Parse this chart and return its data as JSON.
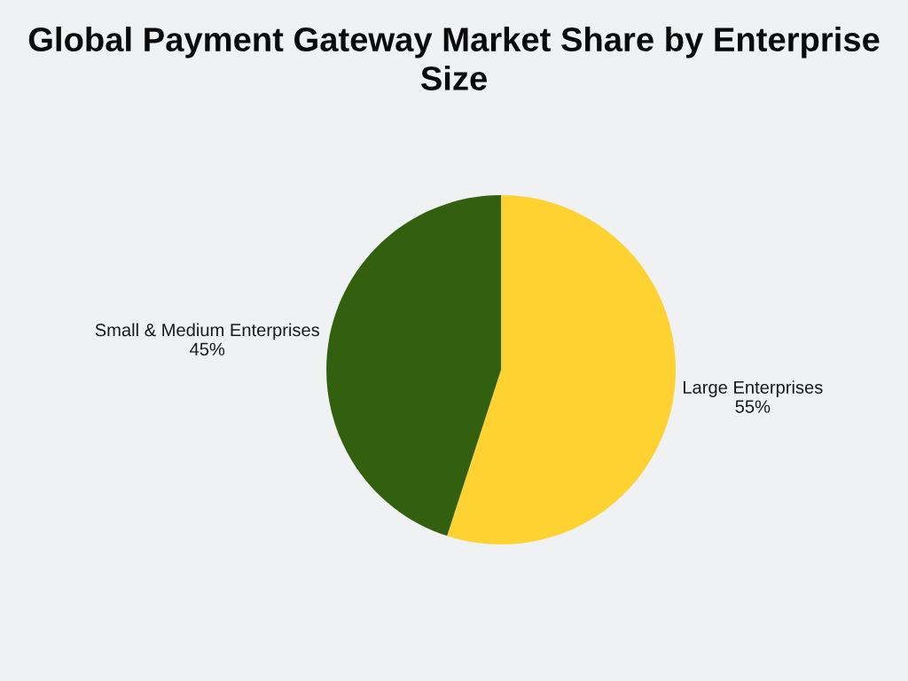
{
  "chart_data": {
    "type": "pie",
    "title": "Global Payment Gateway Market Share by Enterprise Size",
    "categories": [
      "Large Enterprises",
      "Small & Medium Enterprises"
    ],
    "values": [
      55,
      45
    ],
    "colors": [
      "#fdd231",
      "#33600f"
    ],
    "value_labels": [
      "55%",
      "45%"
    ]
  }
}
